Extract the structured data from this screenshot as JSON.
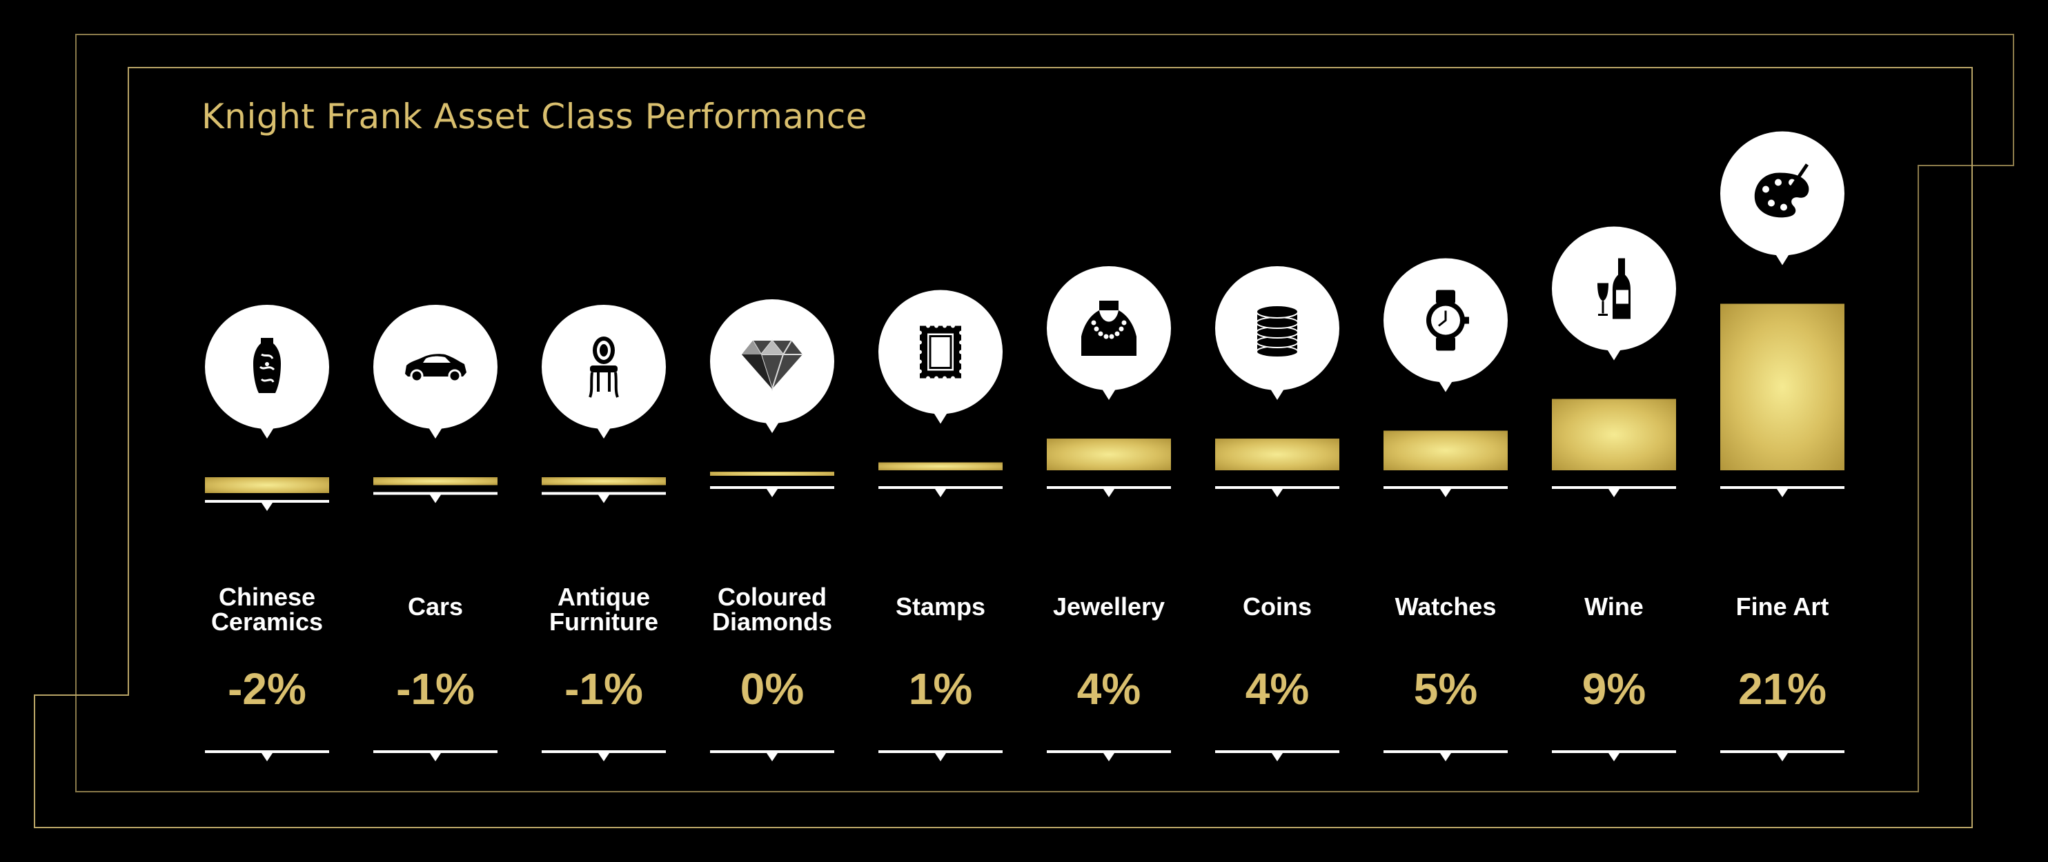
{
  "title": "Knight Frank Asset Class Performance",
  "colors": {
    "background": "#000000",
    "gold": "#d9bf6e",
    "gold_light": "#f3e68c",
    "gold_dark": "#b89a3f",
    "frame": "#8a7a4a"
  },
  "chart_data": {
    "type": "bar",
    "title": "Knight Frank Asset Class Performance",
    "xlabel": "",
    "ylabel": "",
    "categories": [
      "Chinese Ceramics",
      "Cars",
      "Antique Furniture",
      "Coloured Diamonds",
      "Stamps",
      "Jewellery",
      "Coins",
      "Watches",
      "Wine",
      "Fine Art"
    ],
    "labels": [
      "Chinese\nCeramics",
      "Cars",
      "Antique\nFurniture",
      "Coloured\nDiamonds",
      "Stamps",
      "Jewellery",
      "Coins",
      "Watches",
      "Wine",
      "Fine Art"
    ],
    "values": [
      -2,
      -1,
      -1,
      0,
      1,
      4,
      4,
      5,
      9,
      21
    ],
    "value_labels": [
      "-2%",
      "-1%",
      "-1%",
      "0%",
      "1%",
      "4%",
      "4%",
      "5%",
      "9%",
      "21%"
    ],
    "icons": [
      "vase-icon",
      "car-icon",
      "chair-icon",
      "diamond-icon",
      "stamp-icon",
      "necklace-icon",
      "coins-icon",
      "watch-icon",
      "wine-icon",
      "palette-icon"
    ],
    "grid": false,
    "legend": "none"
  }
}
